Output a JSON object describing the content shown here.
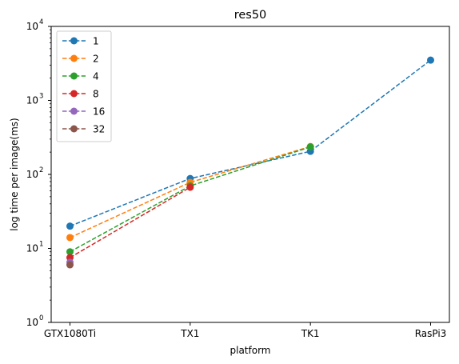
{
  "chart_data": {
    "type": "line",
    "title": "res50",
    "xlabel": "platform",
    "ylabel": "log time per image(ms)",
    "categories": [
      "GTX1080Ti",
      "TX1",
      "TK1",
      "RasPi3"
    ],
    "yscale": "log",
    "ylim": [
      1,
      10000
    ],
    "y_ticks": [
      {
        "value": 1,
        "base": "10",
        "exp": "0"
      },
      {
        "value": 10,
        "base": "10",
        "exp": "1"
      },
      {
        "value": 100,
        "base": "10",
        "exp": "2"
      },
      {
        "value": 1000,
        "base": "10",
        "exp": "3"
      },
      {
        "value": 10000,
        "base": "10",
        "exp": "4"
      }
    ],
    "grid": false,
    "legend_position": "top-left",
    "line_style": "dashed",
    "marker": "circle",
    "series": [
      {
        "name": "1",
        "color": "#1f77b4",
        "values": [
          20,
          88,
          205,
          3500
        ]
      },
      {
        "name": "2",
        "color": "#ff7f0e",
        "values": [
          14,
          78,
          238,
          null
        ]
      },
      {
        "name": "4",
        "color": "#2ca02c",
        "values": [
          9,
          70,
          235,
          null
        ]
      },
      {
        "name": "8",
        "color": "#d62728",
        "values": [
          7.5,
          67,
          null,
          null
        ]
      },
      {
        "name": "16",
        "color": "#9467bd",
        "values": [
          6.5,
          null,
          null,
          null
        ]
      },
      {
        "name": "32",
        "color": "#8c564b",
        "values": [
          6,
          null,
          null,
          null
        ]
      }
    ]
  }
}
